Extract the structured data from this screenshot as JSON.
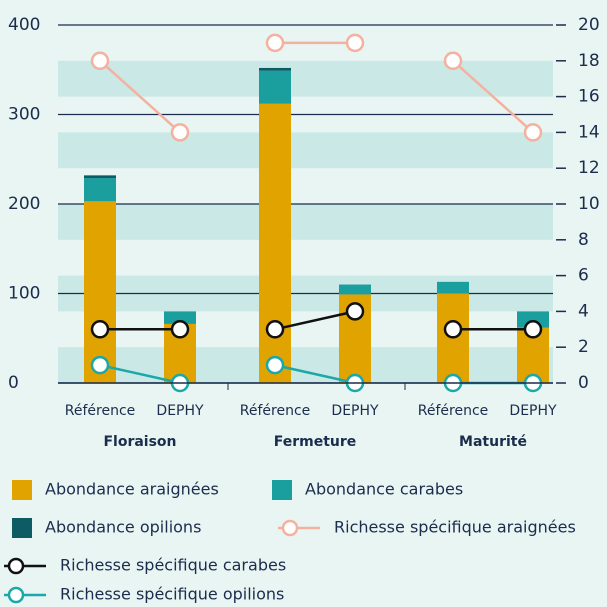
{
  "chart_data": {
    "type": "bar",
    "categories": [
      "Référence",
      "DEPHY",
      "Référence",
      "DEPHY",
      "Référence",
      "DEPHY"
    ],
    "groups": [
      "Floraison",
      "Fermeture",
      "Maturité"
    ],
    "series": [
      {
        "name": "Abondance araignées",
        "type": "bar",
        "color": "#e0a300",
        "values": [
          203,
          66,
          312,
          99,
          100,
          62
        ]
      },
      {
        "name": "Abondance carabes",
        "type": "bar",
        "color": "#1a9e9e",
        "values": [
          26,
          14,
          37,
          11,
          13,
          18
        ]
      },
      {
        "name": "Abondance opilions",
        "type": "bar",
        "color": "#0d5c63",
        "values": [
          3,
          0,
          3,
          0,
          0,
          0
        ]
      },
      {
        "name": "Richesse spécifique araignées",
        "type": "line",
        "axis": "y2",
        "color": "#f5b1a0",
        "values": [
          18,
          14,
          19,
          19,
          18,
          14
        ]
      },
      {
        "name": "Richesse spécifique carabes",
        "type": "line",
        "axis": "y2",
        "color": "#111111",
        "values": [
          3,
          3,
          3,
          4,
          3,
          3
        ]
      },
      {
        "name": "Richesse spécifique opilions",
        "type": "line",
        "axis": "y2",
        "color": "#1aa8a8",
        "values": [
          1,
          0,
          1,
          0,
          0,
          0
        ]
      }
    ],
    "ylim": [
      0,
      400
    ],
    "yticks": [
      0,
      100,
      200,
      300,
      400
    ],
    "y2lim": [
      0,
      20
    ],
    "y2ticks": [
      0,
      2,
      4,
      6,
      8,
      10,
      12,
      14,
      16,
      18,
      20
    ]
  }
}
